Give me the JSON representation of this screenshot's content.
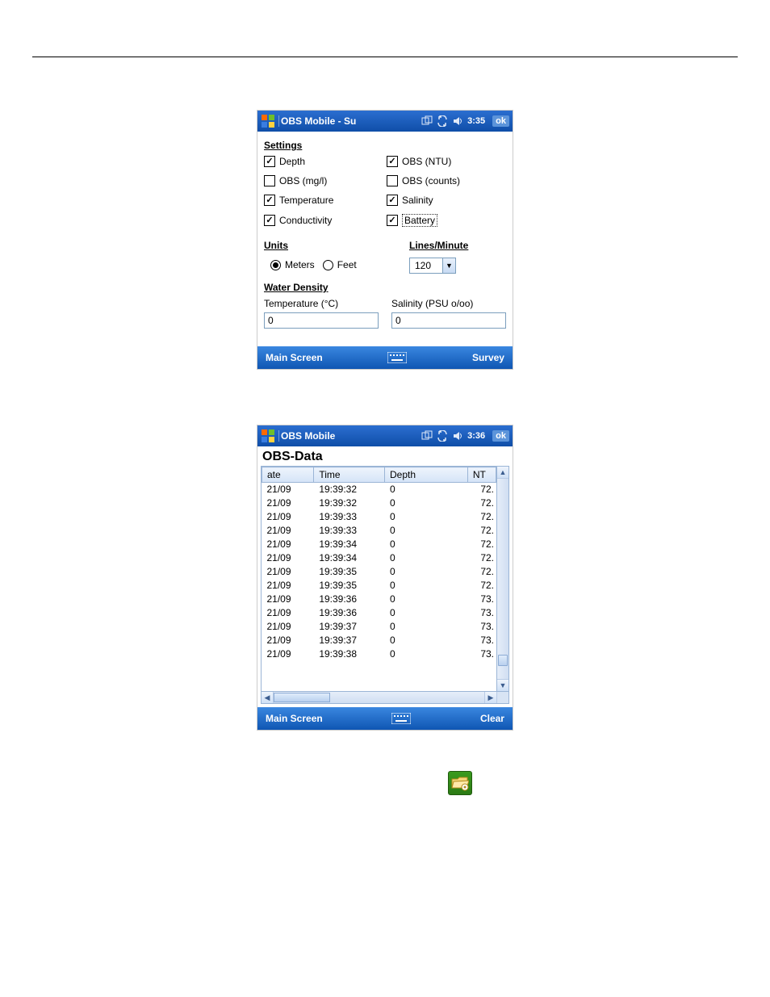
{
  "colors": {
    "titlebar_top": "#2b6ed0",
    "titlebar_bottom": "#0f4ea8",
    "bottombar_top": "#3a87e0",
    "bottombar_bottom": "#0f56b3",
    "header_bg_top": "#eef4fc",
    "header_bg_bottom": "#d4e3f7",
    "border": "#9bb5d6",
    "input_border": "#7b9ebd",
    "folder_bg": "#2b7a14"
  },
  "screen1": {
    "title": "OBS Mobile - Su",
    "time": "3:35",
    "ok": "ok",
    "settings_heading": "Settings",
    "checks": {
      "depth": {
        "label": "Depth",
        "checked": true
      },
      "obs_ntu": {
        "label": "OBS (NTU)",
        "checked": true
      },
      "obs_mgl": {
        "label": "OBS (mg/l)",
        "checked": false
      },
      "obs_counts": {
        "label": "OBS (counts)",
        "checked": false
      },
      "temperature": {
        "label": "Temperature",
        "checked": true
      },
      "salinity": {
        "label": "Salinity",
        "checked": true
      },
      "conductivity": {
        "label": "Conductivity",
        "checked": true
      },
      "battery": {
        "label": "Battery",
        "checked": true
      }
    },
    "units_heading": "Units",
    "units_meters": "Meters",
    "units_feet": "Feet",
    "units_selected": "meters",
    "lpm_heading": "Lines/Minute",
    "lpm_value": "120",
    "wd_heading": "Water Density",
    "wd_temp_label": "Temperature (°C)",
    "wd_temp_value": "0",
    "wd_sal_label": "Salinity (PSU o/oo)",
    "wd_sal_value": "0",
    "bottom_left": "Main Screen",
    "bottom_right": "Survey"
  },
  "screen2": {
    "title": "OBS Mobile",
    "time": "3:36",
    "ok": "ok",
    "heading": "OBS-Data",
    "columns": {
      "date": "ate",
      "time": "Time",
      "depth": "Depth",
      "ntu": "NT"
    },
    "rows": [
      {
        "date": "21/09",
        "time": "19:39:32",
        "depth": "0",
        "ntu": "72."
      },
      {
        "date": "21/09",
        "time": "19:39:32",
        "depth": "0",
        "ntu": "72."
      },
      {
        "date": "21/09",
        "time": "19:39:33",
        "depth": "0",
        "ntu": "72."
      },
      {
        "date": "21/09",
        "time": "19:39:33",
        "depth": "0",
        "ntu": "72."
      },
      {
        "date": "21/09",
        "time": "19:39:34",
        "depth": "0",
        "ntu": "72."
      },
      {
        "date": "21/09",
        "time": "19:39:34",
        "depth": "0",
        "ntu": "72."
      },
      {
        "date": "21/09",
        "time": "19:39:35",
        "depth": "0",
        "ntu": "72."
      },
      {
        "date": "21/09",
        "time": "19:39:35",
        "depth": "0",
        "ntu": "72."
      },
      {
        "date": "21/09",
        "time": "19:39:36",
        "depth": "0",
        "ntu": "73."
      },
      {
        "date": "21/09",
        "time": "19:39:36",
        "depth": "0",
        "ntu": "73."
      },
      {
        "date": "21/09",
        "time": "19:39:37",
        "depth": "0",
        "ntu": "73."
      },
      {
        "date": "21/09",
        "time": "19:39:37",
        "depth": "0",
        "ntu": "73."
      },
      {
        "date": "21/09",
        "time": "19:39:38",
        "depth": "0",
        "ntu": "73."
      }
    ],
    "bottom_left": "Main Screen",
    "bottom_right": "Clear"
  }
}
